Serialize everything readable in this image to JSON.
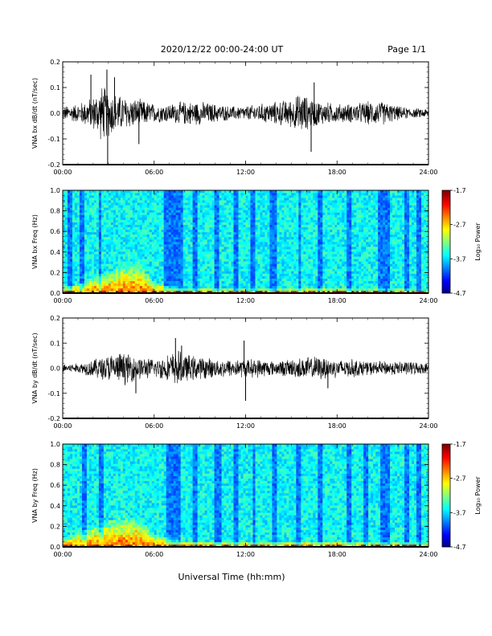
{
  "header": {
    "title": "2020/12/22  00:00-24:00 UT",
    "page": "Page 1/1"
  },
  "x_axis": {
    "label": "Universal Time (hh:mm)",
    "ticks": [
      "00:00",
      "06:00",
      "12:00",
      "18:00",
      "24:00"
    ],
    "range_hours": [
      0,
      24
    ]
  },
  "colorbar": {
    "label": "Log₁₀ Power",
    "ticks": [
      "-1.7",
      "-2.7",
      "-3.7",
      "-4.7"
    ],
    "range": [
      -4.7,
      -1.7
    ]
  },
  "chart_data": [
    {
      "type": "line",
      "ylabel": "VNA bx dB/dt (nT/sec)",
      "ylim": [
        -0.2,
        0.2
      ],
      "yticks": [
        "0.2",
        "0.1",
        "0.0",
        "-0.1",
        "-0.2"
      ],
      "series_color": "#000000",
      "envelope": {
        "x_hours": [
          0,
          1,
          2,
          2.6,
          3,
          4,
          5,
          6,
          7,
          8,
          9,
          10,
          11,
          12,
          13,
          14,
          15,
          15.7,
          16,
          17,
          18,
          19,
          20,
          21,
          22,
          23,
          24
        ],
        "amplitude": [
          0.03,
          0.04,
          0.07,
          0.12,
          0.1,
          0.07,
          0.06,
          0.04,
          0.04,
          0.05,
          0.05,
          0.04,
          0.03,
          0.03,
          0.04,
          0.05,
          0.06,
          0.09,
          0.07,
          0.05,
          0.04,
          0.04,
          0.05,
          0.05,
          0.03,
          0.02,
          0.02
        ]
      },
      "spikes": [
        {
          "x_hours": 1.85,
          "y": 0.15
        },
        {
          "x_hours": 2.9,
          "y": 0.17
        },
        {
          "x_hours": 2.95,
          "y": -0.2
        },
        {
          "x_hours": 3.4,
          "y": 0.14
        },
        {
          "x_hours": 5.0,
          "y": -0.12
        },
        {
          "x_hours": 16.3,
          "y": -0.15
        },
        {
          "x_hours": 16.5,
          "y": 0.12
        }
      ]
    },
    {
      "type": "heatmap",
      "ylabel": "VNA bx Freq (Hz)",
      "ylim": [
        0,
        1
      ],
      "yticks": [
        "1.0",
        "0.8",
        "0.6",
        "0.4",
        "0.2",
        "0.0"
      ],
      "colorbar_range": [
        -4.7,
        -1.7
      ],
      "dark_bands_hours": [
        [
          0.3,
          0.6
        ],
        [
          1.1,
          1.4
        ],
        [
          2.4,
          2.6
        ],
        [
          6.7,
          7.9
        ],
        [
          8.5,
          8.9
        ],
        [
          9.9,
          10.3
        ],
        [
          11.2,
          11.5
        ],
        [
          12.3,
          12.6
        ],
        [
          13.6,
          14.0
        ],
        [
          15.4,
          15.7
        ],
        [
          16.8,
          17.1
        ],
        [
          18.6,
          18.9
        ],
        [
          20.7,
          21.5
        ],
        [
          22.4,
          22.8
        ],
        [
          23.2,
          23.5
        ]
      ],
      "low_freq_enhancement": {
        "x_hours": [
          0,
          1,
          2,
          3,
          4,
          5,
          6,
          8,
          12,
          16,
          20,
          24
        ],
        "max_freq_hz": [
          0.06,
          0.09,
          0.16,
          0.2,
          0.28,
          0.3,
          0.1,
          0.05,
          0.04,
          0.05,
          0.04,
          0.04
        ]
      }
    },
    {
      "type": "line",
      "ylabel": "VNA by dB/dt (nT/sec)",
      "ylim": [
        -0.2,
        0.2
      ],
      "yticks": [
        "0.2",
        "0.1",
        "0.0",
        "-0.1",
        "-0.2"
      ],
      "series_color": "#000000",
      "envelope": {
        "x_hours": [
          0,
          1,
          2,
          3,
          4,
          5,
          6,
          7,
          7.5,
          8,
          9,
          10,
          11,
          12,
          13,
          14,
          15,
          16,
          17,
          18,
          19,
          20,
          21,
          22,
          23,
          24
        ],
        "amplitude": [
          0.02,
          0.02,
          0.04,
          0.06,
          0.07,
          0.05,
          0.04,
          0.06,
          0.08,
          0.06,
          0.05,
          0.04,
          0.04,
          0.04,
          0.04,
          0.03,
          0.04,
          0.05,
          0.05,
          0.04,
          0.04,
          0.03,
          0.03,
          0.03,
          0.03,
          0.02
        ]
      },
      "spikes": [
        {
          "x_hours": 4.8,
          "y": -0.1
        },
        {
          "x_hours": 7.4,
          "y": 0.12
        },
        {
          "x_hours": 7.8,
          "y": 0.09
        },
        {
          "x_hours": 12.0,
          "y": -0.13
        },
        {
          "x_hours": 11.9,
          "y": 0.11
        },
        {
          "x_hours": 17.4,
          "y": -0.08
        }
      ]
    },
    {
      "type": "heatmap",
      "ylabel": "VNA by Freq (Hz)",
      "ylim": [
        0,
        1
      ],
      "yticks": [
        "1.0",
        "0.8",
        "0.6",
        "0.4",
        "0.2",
        "0.0"
      ],
      "colorbar_range": [
        -4.7,
        -1.7
      ],
      "dark_bands_hours": [
        [
          1.2,
          1.5
        ],
        [
          2.4,
          2.7
        ],
        [
          6.8,
          7.8
        ],
        [
          8.6,
          8.9
        ],
        [
          9.9,
          10.4
        ],
        [
          11.2,
          11.5
        ],
        [
          12.4,
          12.7
        ],
        [
          13.7,
          14.1
        ],
        [
          15.3,
          15.6
        ],
        [
          16.7,
          17.0
        ],
        [
          18.6,
          18.9
        ],
        [
          19.8,
          20.1
        ],
        [
          20.8,
          21.5
        ],
        [
          22.5,
          22.8
        ],
        [
          23.2,
          23.6
        ]
      ],
      "low_freq_enhancement": {
        "x_hours": [
          0,
          1,
          2,
          3,
          4,
          5,
          6,
          8,
          12,
          16,
          20,
          24
        ],
        "max_freq_hz": [
          0.08,
          0.14,
          0.2,
          0.26,
          0.3,
          0.28,
          0.12,
          0.06,
          0.05,
          0.06,
          0.05,
          0.04
        ]
      }
    }
  ]
}
